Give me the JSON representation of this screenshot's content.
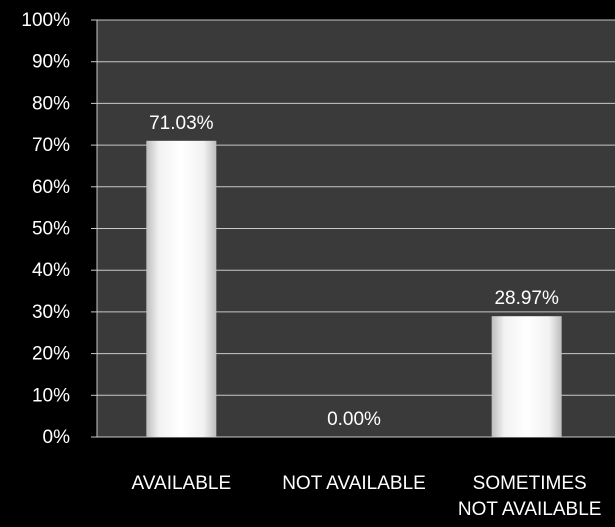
{
  "chart_data": {
    "type": "bar",
    "categories": [
      [
        "AVAILABLE"
      ],
      [
        "NOT AVAILABLE"
      ],
      [
        "SOMETIMES",
        "NOT AVAILABLE"
      ]
    ],
    "values": [
      71.03,
      0.0,
      28.97
    ],
    "data_labels": [
      "71.03%",
      "0.00%",
      "28.97%"
    ],
    "ylim": [
      0,
      100
    ],
    "yticks": [
      0,
      10,
      20,
      30,
      40,
      50,
      60,
      70,
      80,
      90,
      100
    ],
    "ytick_labels": [
      "0%",
      "10%",
      "20%",
      "30%",
      "40%",
      "50%",
      "60%",
      "70%",
      "80%",
      "90%",
      "100%"
    ],
    "title": "",
    "xlabel": "",
    "ylabel": "",
    "grid": true,
    "legend": "none",
    "colors": {
      "background": "#000000",
      "plot_area": "#3a3a3a",
      "gridline": "#c8c8c8",
      "bar_fill_center": "#ffffff",
      "bar_fill_edge": "#bdbdbd",
      "text": "#ffffff"
    }
  }
}
